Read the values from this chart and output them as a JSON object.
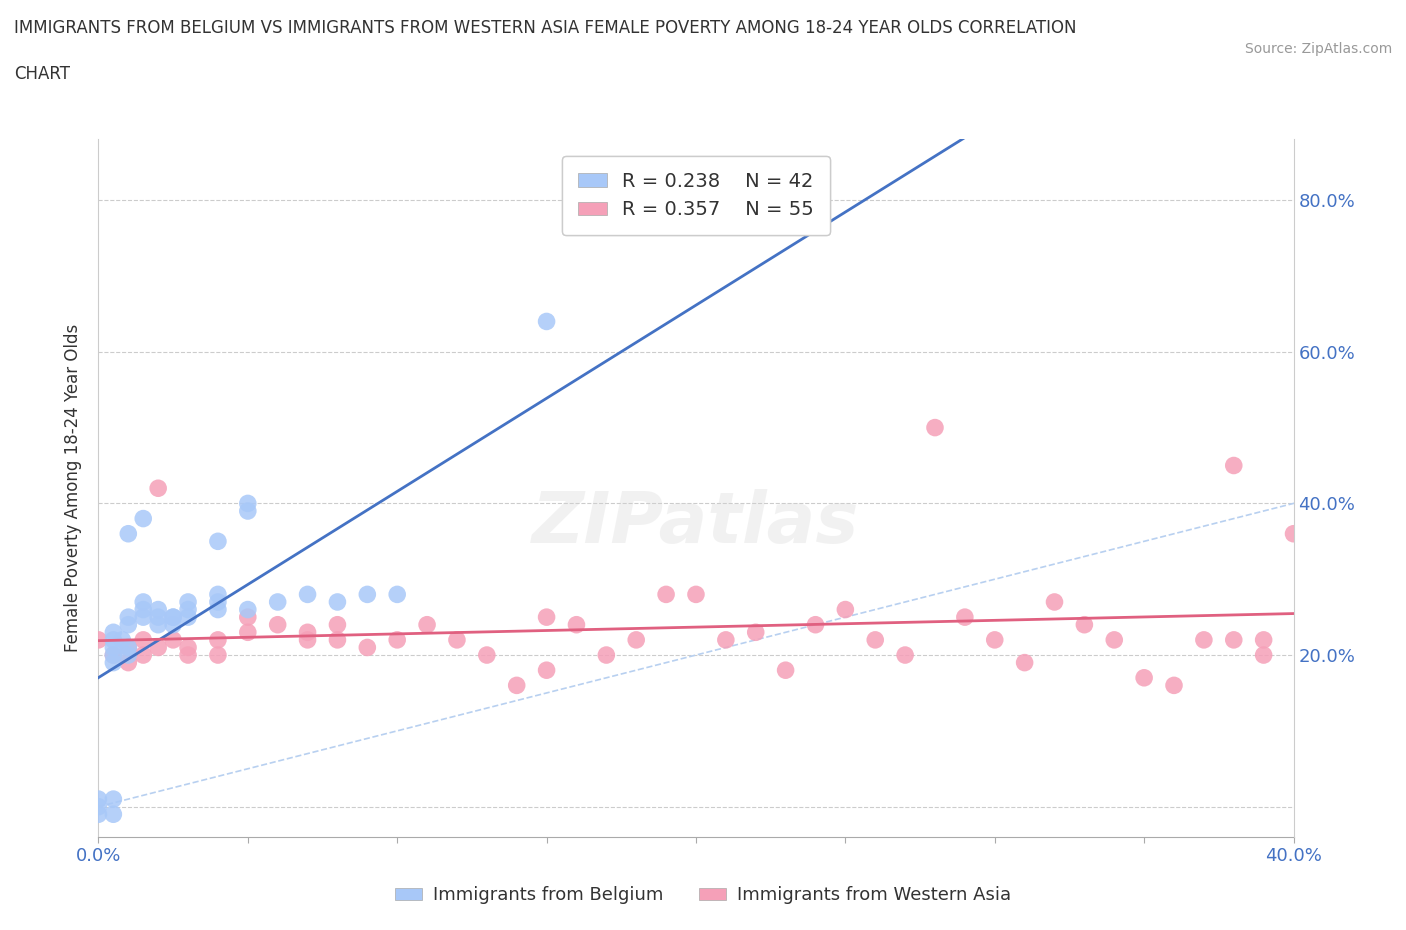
{
  "title_line1": "IMMIGRANTS FROM BELGIUM VS IMMIGRANTS FROM WESTERN ASIA FEMALE POVERTY AMONG 18-24 YEAR OLDS CORRELATION",
  "title_line2": "CHART",
  "source": "Source: ZipAtlas.com",
  "ylabel": "Female Poverty Among 18-24 Year Olds",
  "xlim": [
    0.0,
    0.4
  ],
  "ylim": [
    -0.04,
    0.88
  ],
  "ytick_vals": [
    0.0,
    0.2,
    0.4,
    0.6,
    0.8
  ],
  "xtick_vals": [
    0.0,
    0.05,
    0.1,
    0.15,
    0.2,
    0.25,
    0.3,
    0.35,
    0.4
  ],
  "R_belgium": 0.238,
  "N_belgium": 42,
  "R_western_asia": 0.357,
  "N_western_asia": 55,
  "color_belgium": "#a8c8f8",
  "color_western_asia": "#f5a0b8",
  "trendline_belgium": "#4472c4",
  "trendline_western_asia": "#e06080",
  "refline_color": "#b8d0f0",
  "watermark": "ZIPatlas",
  "belgium_x": [
    0.0,
    0.0,
    0.0,
    0.005,
    0.005,
    0.005,
    0.005,
    0.005,
    0.008,
    0.01,
    0.01,
    0.01,
    0.015,
    0.015,
    0.015,
    0.02,
    0.02,
    0.025,
    0.025,
    0.03,
    0.03,
    0.04,
    0.04,
    0.05,
    0.05,
    0.005,
    0.005,
    0.01,
    0.01,
    0.015,
    0.02,
    0.025,
    0.03,
    0.04,
    0.04,
    0.05,
    0.06,
    0.07,
    0.08,
    0.09,
    0.1,
    0.15
  ],
  "belgium_y": [
    0.0,
    -0.01,
    0.01,
    0.21,
    0.22,
    0.23,
    0.19,
    0.2,
    0.22,
    0.21,
    0.2,
    0.24,
    0.26,
    0.27,
    0.25,
    0.25,
    0.24,
    0.25,
    0.24,
    0.26,
    0.25,
    0.26,
    0.27,
    0.4,
    0.39,
    0.01,
    -0.01,
    0.25,
    0.36,
    0.38,
    0.26,
    0.25,
    0.27,
    0.28,
    0.35,
    0.26,
    0.27,
    0.28,
    0.27,
    0.28,
    0.28,
    0.64
  ],
  "western_asia_x": [
    0.0,
    0.005,
    0.01,
    0.01,
    0.015,
    0.015,
    0.02,
    0.02,
    0.025,
    0.03,
    0.03,
    0.04,
    0.04,
    0.05,
    0.05,
    0.06,
    0.07,
    0.07,
    0.08,
    0.08,
    0.09,
    0.1,
    0.11,
    0.12,
    0.13,
    0.14,
    0.15,
    0.15,
    0.16,
    0.17,
    0.18,
    0.19,
    0.2,
    0.21,
    0.22,
    0.23,
    0.24,
    0.25,
    0.26,
    0.27,
    0.28,
    0.29,
    0.3,
    0.31,
    0.32,
    0.33,
    0.34,
    0.35,
    0.36,
    0.37,
    0.38,
    0.38,
    0.39,
    0.39,
    0.4
  ],
  "western_asia_y": [
    0.22,
    0.2,
    0.19,
    0.21,
    0.22,
    0.2,
    0.42,
    0.21,
    0.22,
    0.21,
    0.2,
    0.22,
    0.2,
    0.25,
    0.23,
    0.24,
    0.22,
    0.23,
    0.24,
    0.22,
    0.21,
    0.22,
    0.24,
    0.22,
    0.2,
    0.16,
    0.18,
    0.25,
    0.24,
    0.2,
    0.22,
    0.28,
    0.28,
    0.22,
    0.23,
    0.18,
    0.24,
    0.26,
    0.22,
    0.2,
    0.5,
    0.25,
    0.22,
    0.19,
    0.27,
    0.24,
    0.22,
    0.17,
    0.16,
    0.22,
    0.45,
    0.22,
    0.2,
    0.22,
    0.36
  ]
}
